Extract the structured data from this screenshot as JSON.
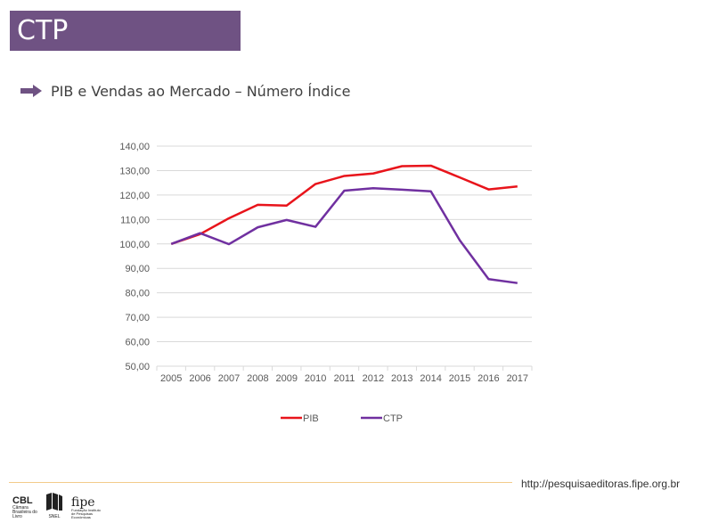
{
  "header": {
    "title": "CTP"
  },
  "subtitle": "PIB e Vendas ao Mercado – Número Índice",
  "chart_data": {
    "type": "line",
    "x": [
      "2005",
      "2006",
      "2007",
      "2008",
      "2009",
      "2010",
      "2011",
      "2012",
      "2013",
      "2014",
      "2015",
      "2016",
      "2017"
    ],
    "series": [
      {
        "name": "PIB",
        "color": "#e8141b",
        "values": [
          100.0,
          104.0,
          110.5,
          116.0,
          115.7,
          124.5,
          127.8,
          128.8,
          131.8,
          132.0,
          127.2,
          122.3,
          123.5
        ]
      },
      {
        "name": "CTP",
        "color": "#7030a0",
        "values": [
          100.0,
          104.4,
          99.9,
          106.8,
          109.8,
          107.0,
          121.8,
          122.8,
          122.2,
          121.5,
          101.5,
          85.6,
          84.0
        ]
      }
    ],
    "ylim": [
      50,
      140
    ],
    "yticks": [
      "50,00",
      "60,00",
      "70,00",
      "80,00",
      "90,00",
      "100,00",
      "110,00",
      "120,00",
      "130,00",
      "140,00"
    ],
    "grid": true,
    "legend_position": "bottom"
  },
  "footer": {
    "url": "http://pesquisaeditoras.fipe.org.br",
    "logos": {
      "cbl_mark": "CBL",
      "cbl_text": "Câmara Brasileira do Livro",
      "snel_text": "SNEL",
      "fipe_mark": "fipe",
      "fipe_text": "Fundação Instituto de Pesquisas Econômicas"
    }
  },
  "colors": {
    "banner": "#6f5283",
    "arrow": "#6f5283",
    "footer_line": "#f3cc8a"
  }
}
